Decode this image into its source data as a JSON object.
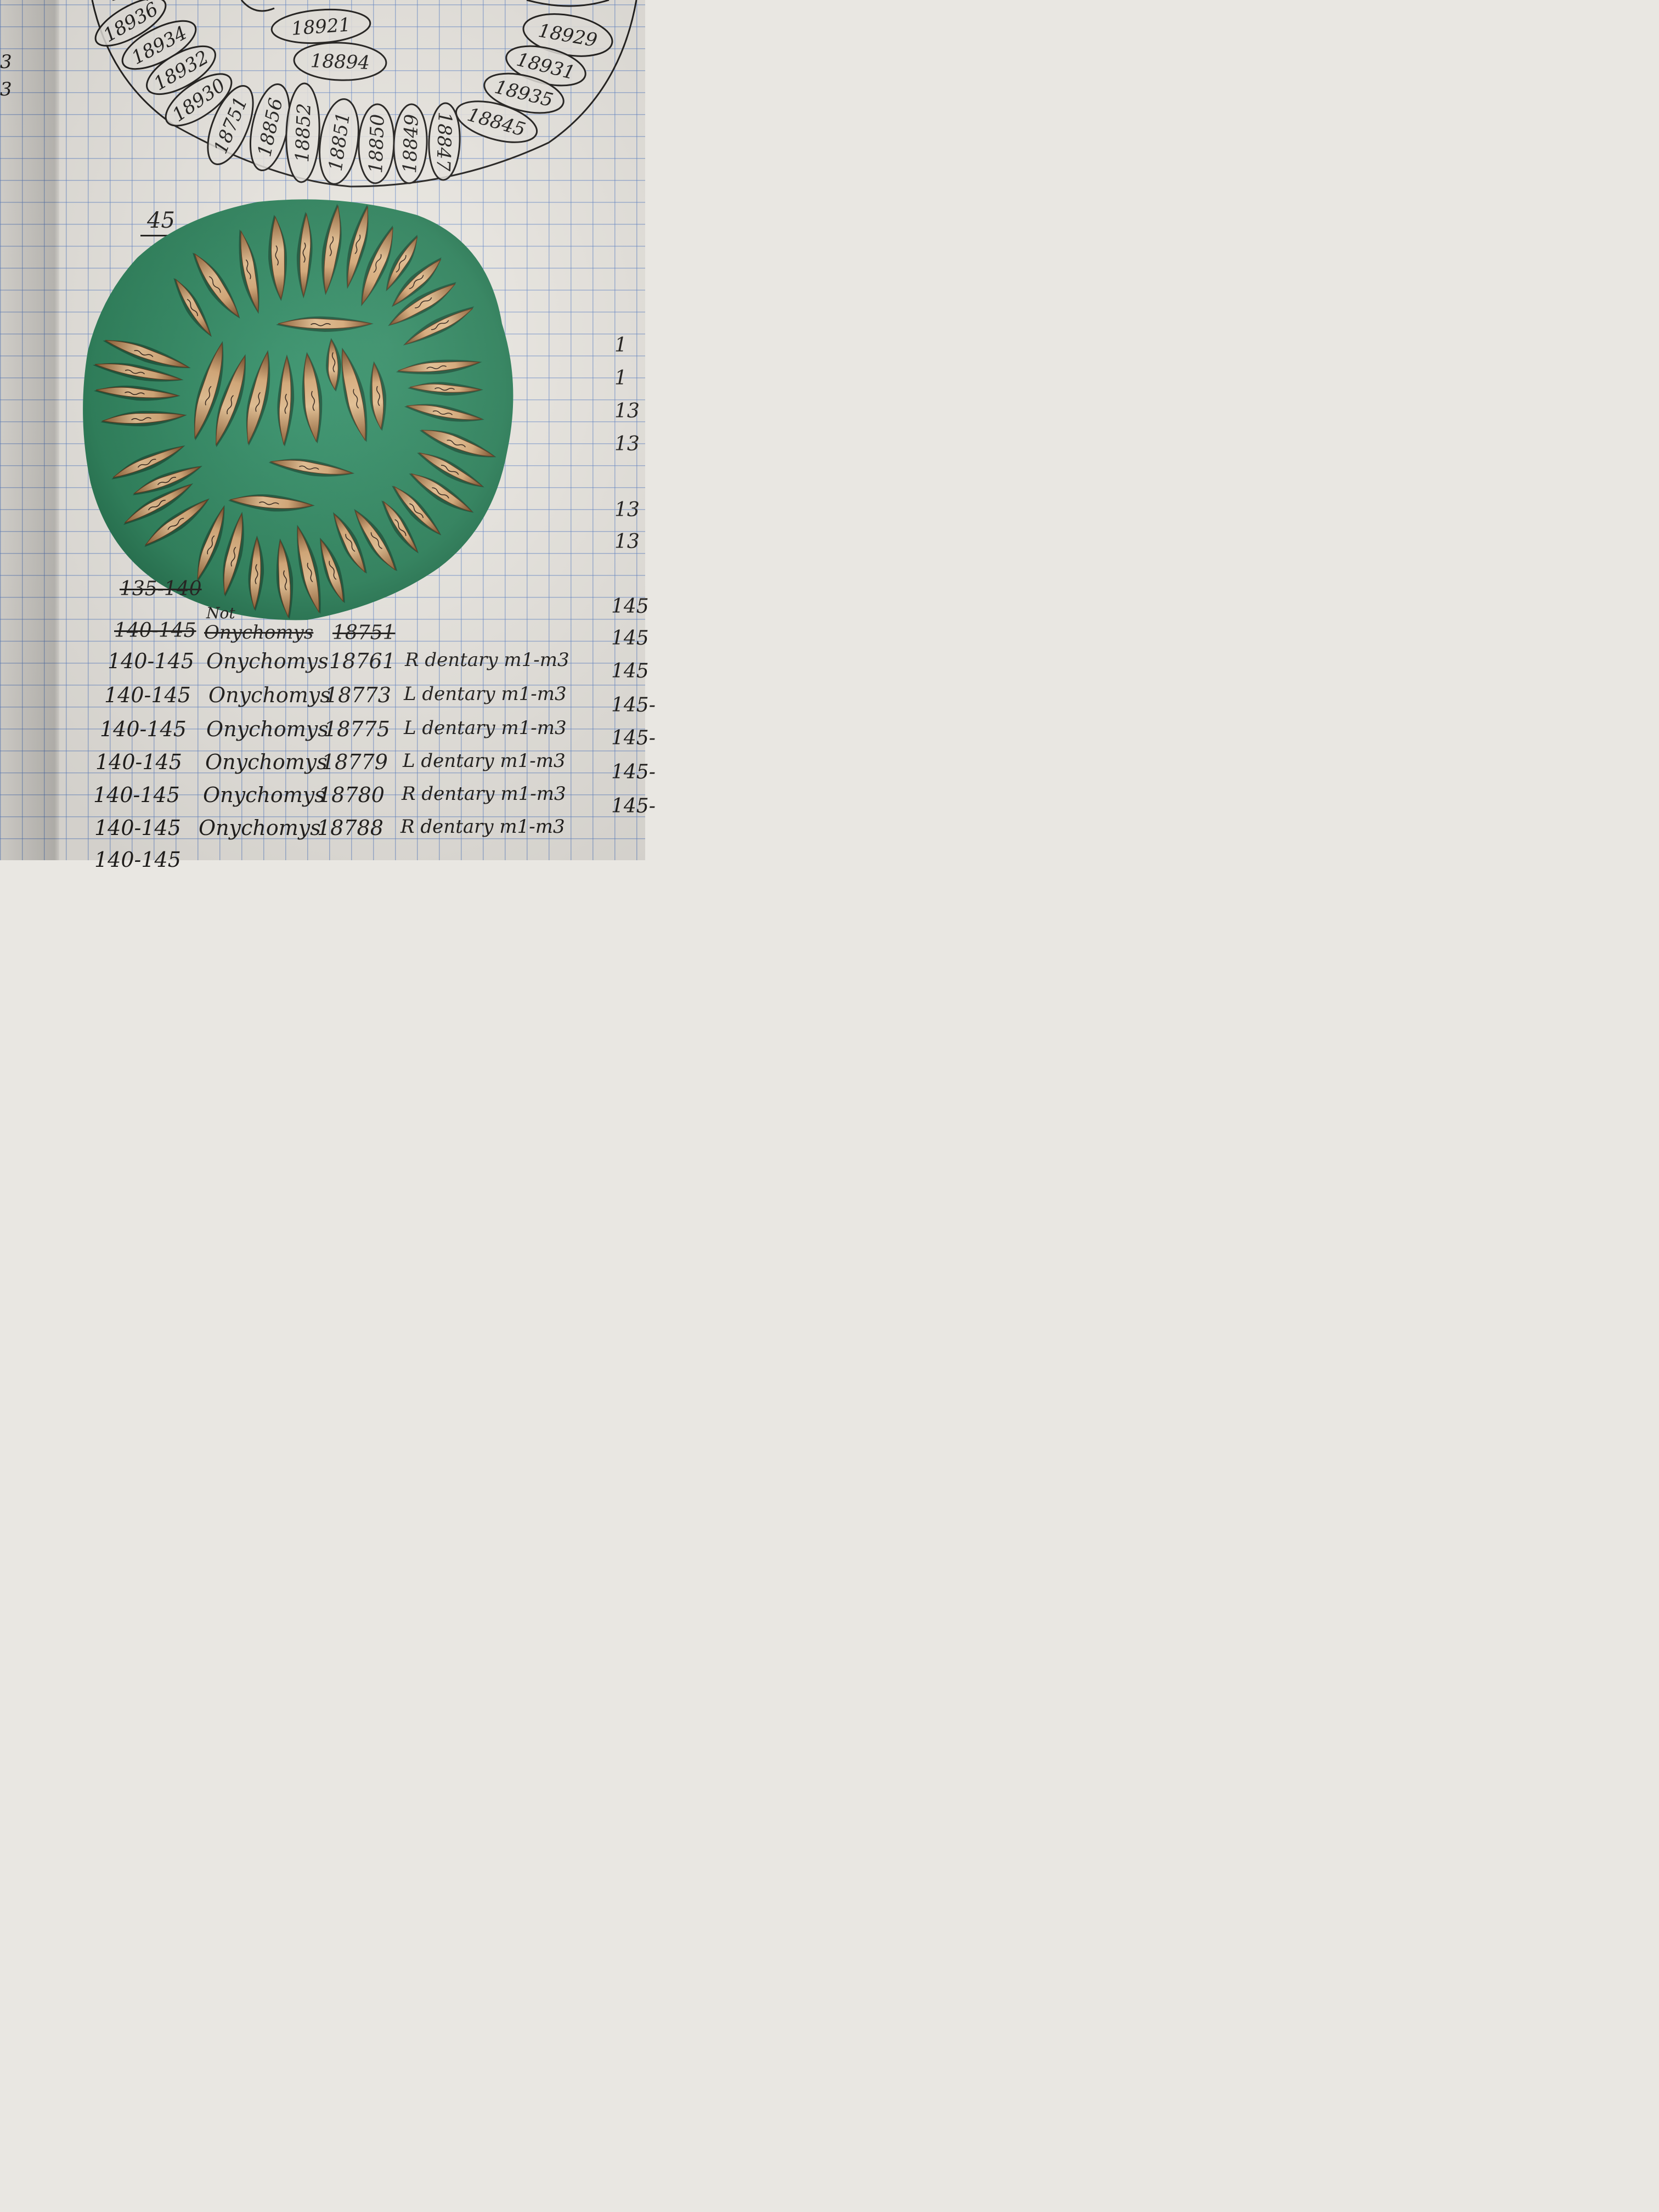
{
  "colors": {
    "paper": "#ebe8e2",
    "grid": "#6084c8",
    "ink": "#1f1d1b",
    "foam": "#2e8a60",
    "bone": "#d5aa78"
  },
  "diagram": {
    "label_numbers": [
      "18936",
      "18934",
      "18932",
      "18930",
      "18751",
      "18856",
      "18852",
      "18851",
      "18850",
      "18849",
      "18847",
      "18921",
      "18894",
      "18929",
      "18931",
      "18935",
      "18845"
    ]
  },
  "foam_tray": {
    "count_label": "45",
    "specimens": "jaw bone fragments arranged radially on green foam"
  },
  "catalog": {
    "struck_rows": [
      {
        "interval": "135-140",
        "taxon": "",
        "number": ""
      },
      {
        "interval": "140-145",
        "taxon": "Onychomys",
        "number": "18751"
      }
    ],
    "note_above": "Not",
    "rows": [
      {
        "interval": "140-145",
        "taxon": "Onychomys",
        "number": "18761",
        "element": "R dentary m1-m3"
      },
      {
        "interval": "140-145",
        "taxon": "Onychomys",
        "number": "18773",
        "element": "L dentary m1-m3"
      },
      {
        "interval": "140-145",
        "taxon": "Onychomys",
        "number": "18775",
        "element": "L dentary m1-m3"
      },
      {
        "interval": "140-145",
        "taxon": "Onychomys",
        "number": "18779",
        "element": "L dentary m1-m3"
      },
      {
        "interval": "140-145",
        "taxon": "Onychomys",
        "number": "18780",
        "element": "R dentary m1-m3"
      },
      {
        "interval": "140-145",
        "taxon": "Onychomys",
        "number": "18788",
        "element": "R dentary m1-m3"
      },
      {
        "interval": "140-145",
        "taxon": "",
        "number": "",
        "element": ""
      }
    ]
  },
  "left_margin": [
    "3",
    "3"
  ],
  "right_margin": [
    "1",
    "1",
    "13",
    "13",
    "13",
    "13",
    "145",
    "145",
    "145",
    "145-",
    "145-",
    "145-",
    "145-"
  ]
}
